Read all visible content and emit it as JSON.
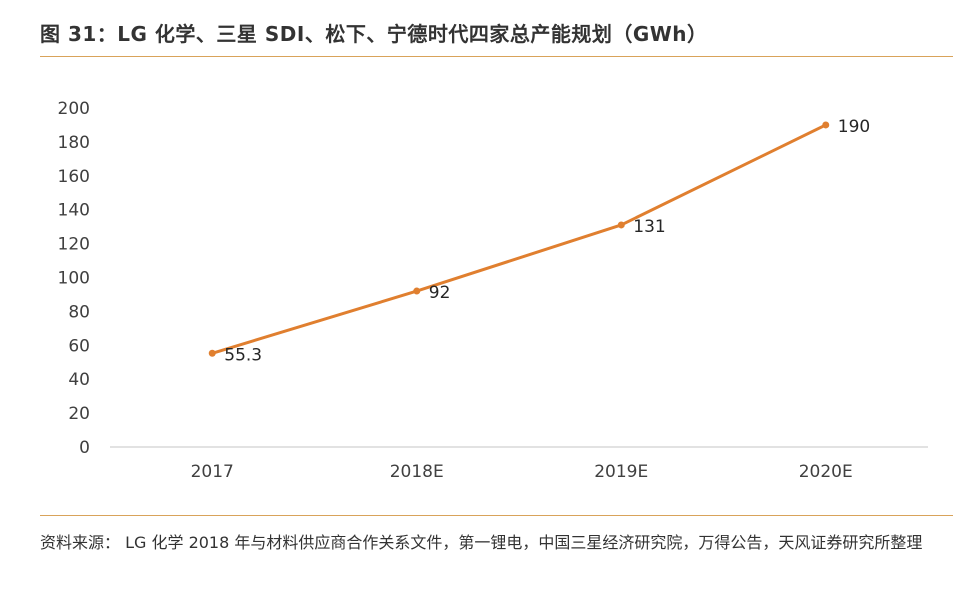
{
  "title": "图 31：LG 化学、三星 SDI、松下、宁德时代四家总产能规划（GWh）",
  "source": "资料来源： LG 化学 2018 年与材料供应商合作关系文件，第一锂电，中国三星经济研究院，万得公告，天风证券研究所整理",
  "colors": {
    "line": "#e07f2f",
    "rule": "#d9a35a",
    "axis": "#d9d9d9"
  },
  "chart_data": {
    "type": "line",
    "categories": [
      "2017",
      "2018E",
      "2019E",
      "2020E"
    ],
    "series": [
      {
        "values": [
          55.3,
          92,
          131,
          190
        ]
      }
    ],
    "data_labels": [
      "55.3",
      "92",
      "131",
      "190"
    ],
    "yticks": [
      "0",
      "20",
      "40",
      "60",
      "80",
      "100",
      "120",
      "140",
      "160",
      "180",
      "200"
    ],
    "ylim": [
      0,
      200
    ],
    "xlabel": "",
    "ylabel": "",
    "grid": false,
    "legend": "none"
  }
}
